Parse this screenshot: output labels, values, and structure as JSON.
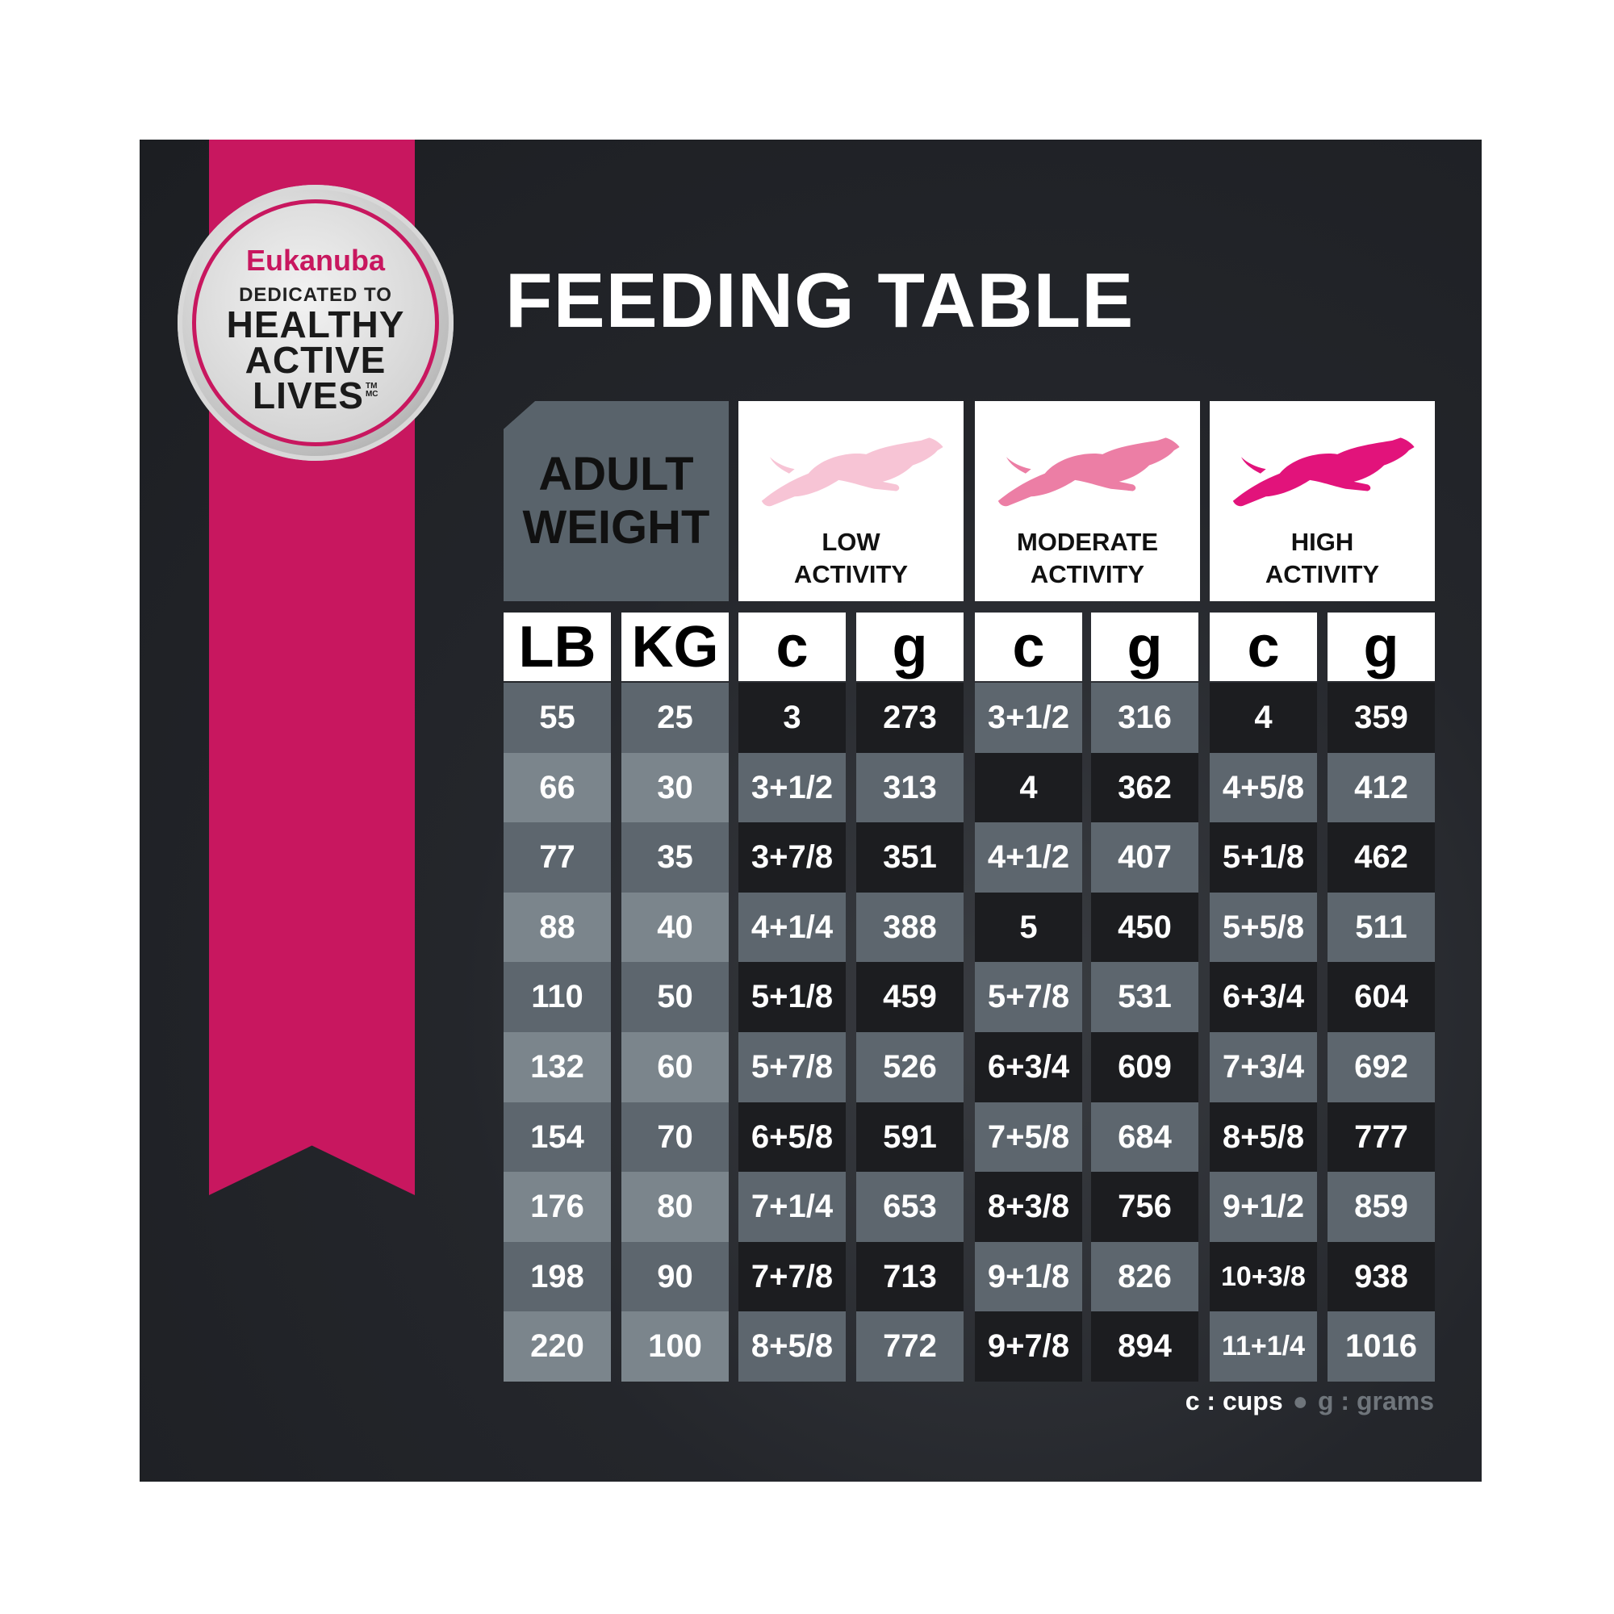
{
  "badge": {
    "brand": "Eukanuba",
    "tagline": "DEDICATED TO",
    "line1": "HEALTHY",
    "line2": "ACTIVE",
    "line3": "LIVES",
    "mark": "TM MC"
  },
  "title": "FEEDING TABLE",
  "header": {
    "weight_line1": "ADULT",
    "weight_line2": "WEIGHT",
    "activities": [
      {
        "line1": "LOW",
        "line2": "ACTIVITY",
        "icon": "dog-leaping-icon",
        "color": "#f7c4d5"
      },
      {
        "line1": "MODERATE",
        "line2": "ACTIVITY",
        "icon": "dog-leaping-icon",
        "color": "#ec7ea5"
      },
      {
        "line1": "HIGH",
        "line2": "ACTIVITY",
        "icon": "dog-leaping-icon",
        "color": "#e2137b"
      }
    ]
  },
  "units": [
    "LB",
    "KG",
    "c",
    "g",
    "c",
    "g",
    "c",
    "g"
  ],
  "rows": [
    [
      "55",
      "25",
      "3",
      "273",
      "3+1/2",
      "316",
      "4",
      "359"
    ],
    [
      "66",
      "30",
      "3+1/2",
      "313",
      "4",
      "362",
      "4+5/8",
      "412"
    ],
    [
      "77",
      "35",
      "3+7/8",
      "351",
      "4+1/2",
      "407",
      "5+1/8",
      "462"
    ],
    [
      "88",
      "40",
      "4+1/4",
      "388",
      "5",
      "450",
      "5+5/8",
      "511"
    ],
    [
      "110",
      "50",
      "5+1/8",
      "459",
      "5+7/8",
      "531",
      "6+3/4",
      "604"
    ],
    [
      "132",
      "60",
      "5+7/8",
      "526",
      "6+3/4",
      "609",
      "7+3/4",
      "692"
    ],
    [
      "154",
      "70",
      "6+5/8",
      "591",
      "7+5/8",
      "684",
      "8+5/8",
      "777"
    ],
    [
      "176",
      "80",
      "7+1/4",
      "653",
      "8+3/8",
      "756",
      "9+1/2",
      "859"
    ],
    [
      "198",
      "90",
      "7+7/8",
      "713",
      "9+1/8",
      "826",
      "10+3/8",
      "938"
    ],
    [
      "220",
      "100",
      "8+5/8",
      "772",
      "9+7/8",
      "894",
      "11+1/4",
      "1016"
    ]
  ],
  "legend": {
    "cups": "c : cups",
    "grams": "g : grams"
  },
  "colors": {
    "brand_pink": "#c8175f",
    "background": "#24262b",
    "cell_dark": "#1c1d20",
    "cell_gray": "#5d666e",
    "cell_light": "#7b858c"
  }
}
